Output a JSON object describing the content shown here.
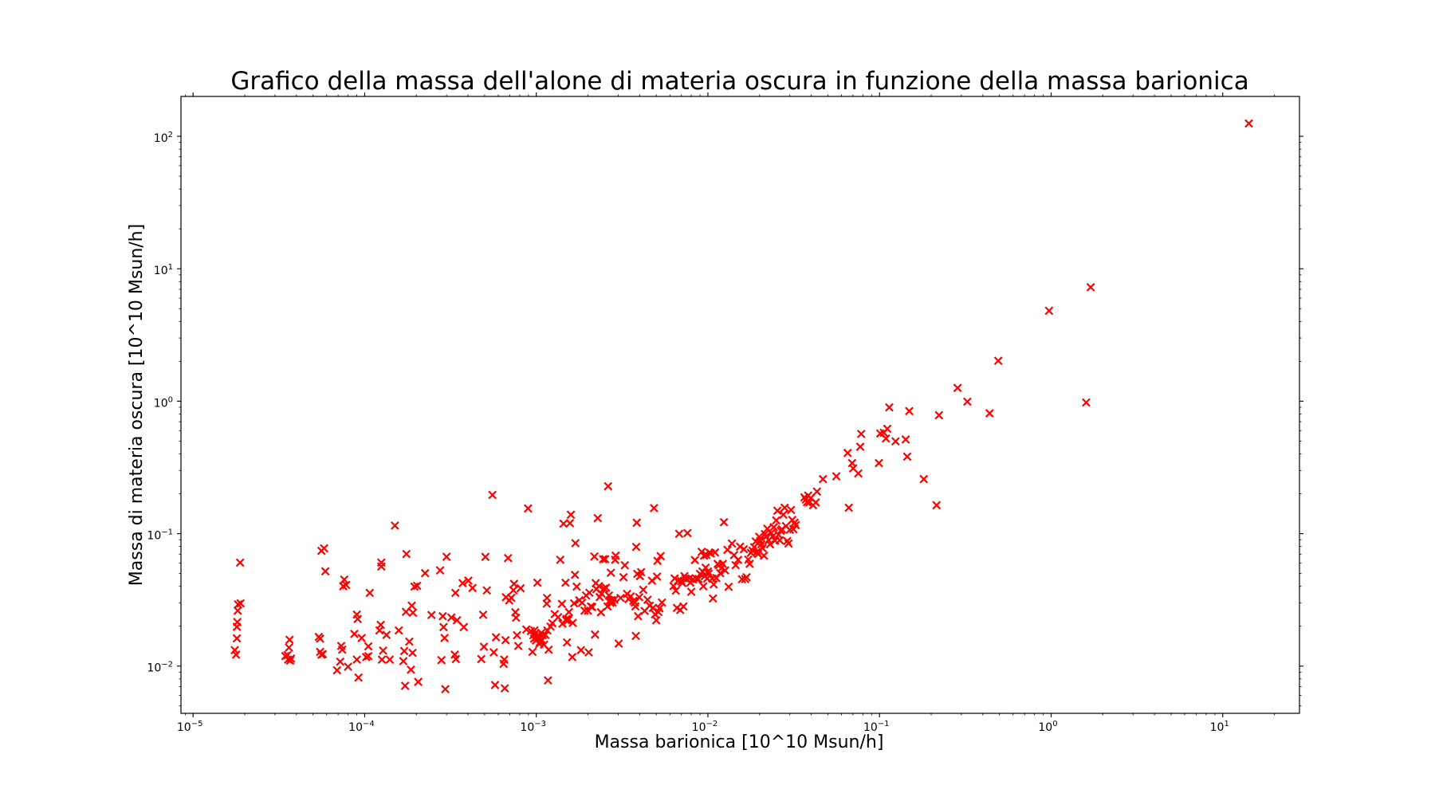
{
  "chart_data": {
    "type": "scatter",
    "title": "Grafico della massa dell'alone di materia oscura in funzione della massa barionica",
    "xlabel": "Massa barionica [10^10 Msun/h]",
    "ylabel": "Massa di materia oscura [10^10 Msun/h]",
    "xscale": "log",
    "yscale": "log",
    "xlim": [
      8.5e-06,
      28
    ],
    "ylim": [
      0.0044,
      200
    ],
    "xticks": [
      {
        "base": "10",
        "exp": "−5",
        "value": 1e-05
      },
      {
        "base": "10",
        "exp": "−4",
        "value": 0.0001
      },
      {
        "base": "10",
        "exp": "−3",
        "value": 0.001
      },
      {
        "base": "10",
        "exp": "−2",
        "value": 0.01
      },
      {
        "base": "10",
        "exp": "−1",
        "value": 0.1
      },
      {
        "base": "10",
        "exp": "0",
        "value": 1
      },
      {
        "base": "10",
        "exp": "1",
        "value": 10
      }
    ],
    "yticks": [
      {
        "base": "10",
        "exp": "−2",
        "value": 0.01
      },
      {
        "base": "10",
        "exp": "−1",
        "value": 0.1
      },
      {
        "base": "10",
        "exp": "0",
        "value": 1
      },
      {
        "base": "10",
        "exp": "1",
        "value": 10
      },
      {
        "base": "10",
        "exp": "2",
        "value": 100
      }
    ],
    "grid": false,
    "legend": "none",
    "marker": "x",
    "color": "#ff0000",
    "points": [
      [
        1.75e-05,
        0.0132
      ],
      [
        1.78e-05,
        0.0122
      ],
      [
        1.8e-05,
        0.0162
      ],
      [
        1.8e-05,
        0.0198
      ],
      [
        1.81e-05,
        0.0215
      ],
      [
        1.82e-05,
        0.0262
      ],
      [
        1.83e-05,
        0.0292
      ],
      [
        1.89e-05,
        0.0298
      ],
      [
        1.88e-05,
        0.0605
      ],
      [
        3.45e-05,
        0.0119
      ],
      [
        3.55e-05,
        0.0121
      ],
      [
        3.58e-05,
        0.0112
      ],
      [
        3.62e-05,
        0.0138
      ],
      [
        3.65e-05,
        0.0158
      ],
      [
        3.68e-05,
        0.011
      ],
      [
        3.72e-05,
        0.0114
      ],
      [
        5.4e-05,
        0.0166
      ],
      [
        5.5e-05,
        0.0161
      ],
      [
        5.5e-05,
        0.0128
      ],
      [
        5.6e-05,
        0.0122
      ],
      [
        5.7e-05,
        0.0123
      ],
      [
        5.6e-05,
        0.0742
      ],
      [
        5.8e-05,
        0.0775
      ],
      [
        5.9e-05,
        0.052
      ],
      [
        6.9e-05,
        0.0093
      ],
      [
        7.2e-05,
        0.0108
      ],
      [
        7.3e-05,
        0.0142
      ],
      [
        7.4e-05,
        0.0133
      ],
      [
        7.5e-05,
        0.0401
      ],
      [
        7.6e-05,
        0.045
      ],
      [
        7.8e-05,
        0.041
      ],
      [
        8e-05,
        0.0099
      ],
      [
        8.7e-05,
        0.0175
      ],
      [
        9e-05,
        0.0112
      ],
      [
        9e-05,
        0.0245
      ],
      [
        9.1e-05,
        0.0227
      ],
      [
        9.2e-05,
        0.0082
      ],
      [
        9.6e-05,
        0.0163
      ],
      [
        0.000102,
        0.0117
      ],
      [
        0.000105,
        0.0141
      ],
      [
        0.000105,
        0.0119
      ],
      [
        0.000107,
        0.0357
      ],
      [
        0.000122,
        0.0186
      ],
      [
        0.000124,
        0.0205
      ],
      [
        0.000125,
        0.0605
      ],
      [
        0.000125,
        0.0565
      ],
      [
        0.000126,
        0.0112
      ],
      [
        0.000128,
        0.0131
      ],
      [
        0.000134,
        0.0172
      ],
      [
        0.00014,
        0.0112
      ],
      [
        0.00015,
        0.115
      ],
      [
        0.000158,
        0.0186
      ],
      [
        0.000168,
        0.0109
      ],
      [
        0.00017,
        0.013
      ],
      [
        0.000172,
        0.0071
      ],
      [
        0.000174,
        0.0257
      ],
      [
        0.000175,
        0.0702
      ],
      [
        0.000182,
        0.0153
      ],
      [
        0.000186,
        0.0094
      ],
      [
        0.000188,
        0.0286
      ],
      [
        0.00019,
        0.0126
      ],
      [
        0.000191,
        0.0253
      ],
      [
        0.000195,
        0.0398
      ],
      [
        0.000202,
        0.0404
      ],
      [
        0.000205,
        0.0076
      ],
      [
        0.000225,
        0.0503
      ],
      [
        0.000245,
        0.0243
      ],
      [
        0.000275,
        0.0528
      ],
      [
        0.00028,
        0.0111
      ],
      [
        0.000285,
        0.0238
      ],
      [
        0.000288,
        0.0197
      ],
      [
        0.000292,
        0.0163
      ],
      [
        0.000295,
        0.0067
      ],
      [
        0.0003,
        0.0669
      ],
      [
        0.00032,
        0.0233
      ],
      [
        0.000335,
        0.0122
      ],
      [
        0.000338,
        0.0357
      ],
      [
        0.00034,
        0.0113
      ],
      [
        0.000345,
        0.0222
      ],
      [
        0.000372,
        0.0423
      ],
      [
        0.000378,
        0.0197
      ],
      [
        0.000402,
        0.0442
      ],
      [
        0.000425,
        0.0389
      ],
      [
        0.000478,
        0.0113
      ],
      [
        0.00049,
        0.0244
      ],
      [
        0.000495,
        0.014
      ],
      [
        0.000505,
        0.0668
      ],
      [
        0.000515,
        0.0373
      ],
      [
        0.000555,
        0.196
      ],
      [
        0.000565,
        0.0127
      ],
      [
        0.000575,
        0.0072
      ],
      [
        0.000582,
        0.0165
      ],
      [
        0.000645,
        0.0104
      ],
      [
        0.00065,
        0.0112
      ],
      [
        0.000655,
        0.0068
      ],
      [
        0.000662,
        0.0157
      ],
      [
        0.000665,
        0.0331
      ],
      [
        0.000685,
        0.0654
      ],
      [
        0.000695,
        0.0313
      ],
      [
        0.000715,
        0.0328
      ],
      [
        0.000735,
        0.0374
      ],
      [
        0.000742,
        0.0418
      ],
      [
        0.000755,
        0.0255
      ],
      [
        0.000762,
        0.0232
      ],
      [
        0.000772,
        0.0171
      ],
      [
        0.000785,
        0.0142
      ],
      [
        0.00081,
        0.0387
      ],
      [
        0.000875,
        0.0189
      ],
      [
        0.000895,
        0.155
      ],
      [
        0.00093,
        0.0184
      ],
      [
        0.00095,
        0.0128
      ],
      [
        0.00096,
        0.0171
      ],
      [
        0.00097,
        0.0161
      ],
      [
        0.000975,
        0.0186
      ],
      [
        0.000985,
        0.0176
      ],
      [
        0.000995,
        0.0156
      ],
      [
        0.001,
        0.0165
      ],
      [
        0.001015,
        0.0426
      ],
      [
        0.00103,
        0.0163
      ],
      [
        0.00104,
        0.0147
      ],
      [
        0.00105,
        0.0152
      ],
      [
        0.00107,
        0.0178
      ],
      [
        0.00108,
        0.0157
      ],
      [
        0.00109,
        0.0171
      ],
      [
        0.00111,
        0.0145
      ],
      [
        0.00113,
        0.0172
      ],
      [
        0.00115,
        0.0296
      ],
      [
        0.001155,
        0.0327
      ],
      [
        0.00116,
        0.0186
      ],
      [
        0.00117,
        0.0078
      ],
      [
        0.00118,
        0.0133
      ],
      [
        0.00121,
        0.0199
      ],
      [
        0.00124,
        0.0211
      ],
      [
        0.00128,
        0.0247
      ],
      [
        0.00134,
        0.0234
      ],
      [
        0.00138,
        0.0635
      ],
      [
        0.00141,
        0.0295
      ],
      [
        0.00142,
        0.0209
      ],
      [
        0.00144,
        0.119
      ],
      [
        0.00148,
        0.0426
      ],
      [
        0.00149,
        0.0222
      ],
      [
        0.0015,
        0.0227
      ],
      [
        0.00151,
        0.0151
      ],
      [
        0.00153,
        0.0222
      ],
      [
        0.00154,
        0.0227
      ],
      [
        0.00155,
        0.0256
      ],
      [
        0.00157,
        0.12
      ],
      [
        0.00159,
        0.139
      ],
      [
        0.00162,
        0.0117
      ],
      [
        0.00163,
        0.0212
      ],
      [
        0.00166,
        0.0298
      ],
      [
        0.00168,
        0.0489
      ],
      [
        0.00169,
        0.0848
      ],
      [
        0.00172,
        0.0398
      ],
      [
        0.00178,
        0.0314
      ],
      [
        0.00182,
        0.0132
      ],
      [
        0.00185,
        0.0301
      ],
      [
        0.00191,
        0.0262
      ],
      [
        0.00195,
        0.0341
      ],
      [
        0.002,
        0.0262
      ],
      [
        0.00202,
        0.0127
      ],
      [
        0.00204,
        0.0358
      ],
      [
        0.00208,
        0.0282
      ],
      [
        0.00212,
        0.0279
      ],
      [
        0.00218,
        0.0672
      ],
      [
        0.0022,
        0.0173
      ],
      [
        0.00222,
        0.0423
      ],
      [
        0.00224,
        0.0381
      ],
      [
        0.00228,
        0.131
      ],
      [
        0.00232,
        0.0402
      ],
      [
        0.00234,
        0.0332
      ],
      [
        0.00238,
        0.0255
      ],
      [
        0.0024,
        0.0352
      ],
      [
        0.00245,
        0.0641
      ],
      [
        0.00248,
        0.0385
      ],
      [
        0.00252,
        0.0642
      ],
      [
        0.00255,
        0.0391
      ],
      [
        0.0026,
        0.0282
      ],
      [
        0.00262,
        0.228
      ],
      [
        0.00265,
        0.0341
      ],
      [
        0.00268,
        0.0313
      ],
      [
        0.0027,
        0.0301
      ],
      [
        0.00272,
        0.0507
      ],
      [
        0.00275,
        0.0315
      ],
      [
        0.00278,
        0.0302
      ],
      [
        0.00285,
        0.0318
      ],
      [
        0.00288,
        0.0635
      ],
      [
        0.0029,
        0.0682
      ],
      [
        0.00302,
        0.0148
      ],
      [
        0.0031,
        0.0327
      ],
      [
        0.00322,
        0.0469
      ],
      [
        0.00328,
        0.0577
      ],
      [
        0.00338,
        0.0351
      ],
      [
        0.00345,
        0.0321
      ],
      [
        0.00355,
        0.0336
      ],
      [
        0.00368,
        0.0311
      ],
      [
        0.00375,
        0.0302
      ],
      [
        0.00378,
        0.0282
      ],
      [
        0.0038,
        0.0169
      ],
      [
        0.00382,
        0.0794
      ],
      [
        0.00385,
        0.121
      ],
      [
        0.00388,
        0.0497
      ],
      [
        0.00392,
        0.0238
      ],
      [
        0.00398,
        0.0331
      ],
      [
        0.00402,
        0.0478
      ],
      [
        0.00408,
        0.0512
      ],
      [
        0.0042,
        0.0377
      ],
      [
        0.00428,
        0.0261
      ],
      [
        0.00445,
        0.0317
      ],
      [
        0.00458,
        0.0286
      ],
      [
        0.00472,
        0.0442
      ],
      [
        0.00478,
        0.0275
      ],
      [
        0.00485,
        0.156
      ],
      [
        0.00492,
        0.0246
      ],
      [
        0.005,
        0.0222
      ],
      [
        0.00505,
        0.0474
      ],
      [
        0.00508,
        0.0623
      ],
      [
        0.00515,
        0.0256
      ],
      [
        0.00522,
        0.0273
      ],
      [
        0.0053,
        0.0677
      ],
      [
        0.0054,
        0.0302
      ],
      [
        0.0063,
        0.0402
      ],
      [
        0.0064,
        0.0459
      ],
      [
        0.0065,
        0.0371
      ],
      [
        0.0066,
        0.0275
      ],
      [
        0.0067,
        0.0442
      ],
      [
        0.0068,
        0.0998
      ],
      [
        0.0069,
        0.0265
      ],
      [
        0.007,
        0.0437
      ],
      [
        0.0071,
        0.0423
      ],
      [
        0.0072,
        0.0282
      ],
      [
        0.0073,
        0.0478
      ],
      [
        0.0074,
        0.0458
      ],
      [
        0.0076,
        0.101
      ],
      [
        0.0078,
        0.0461
      ],
      [
        0.0079,
        0.0427
      ],
      [
        0.008,
        0.0364
      ],
      [
        0.0082,
        0.0451
      ],
      [
        0.0084,
        0.0632
      ],
      [
        0.0086,
        0.0454
      ],
      [
        0.0088,
        0.0455
      ],
      [
        0.009,
        0.0496
      ],
      [
        0.0092,
        0.0729
      ],
      [
        0.0093,
        0.0518
      ],
      [
        0.0094,
        0.0401
      ],
      [
        0.0095,
        0.0682
      ],
      [
        0.0096,
        0.0478
      ],
      [
        0.0097,
        0.0554
      ],
      [
        0.0098,
        0.0691
      ],
      [
        0.0099,
        0.0458
      ],
      [
        0.01,
        0.0518
      ],
      [
        0.0101,
        0.0499
      ],
      [
        0.0102,
        0.0719
      ],
      [
        0.0104,
        0.0709
      ],
      [
        0.0106,
        0.0458
      ],
      [
        0.0107,
        0.0324
      ],
      [
        0.0108,
        0.0414
      ],
      [
        0.011,
        0.0721
      ],
      [
        0.0112,
        0.0462
      ],
      [
        0.0114,
        0.0591
      ],
      [
        0.0116,
        0.0578
      ],
      [
        0.0118,
        0.0503
      ],
      [
        0.012,
        0.0549
      ],
      [
        0.0122,
        0.0591
      ],
      [
        0.0124,
        0.122
      ],
      [
        0.0126,
        0.0528
      ],
      [
        0.013,
        0.0755
      ],
      [
        0.0132,
        0.0397
      ],
      [
        0.0138,
        0.0842
      ],
      [
        0.0142,
        0.0689
      ],
      [
        0.0145,
        0.0578
      ],
      [
        0.015,
        0.0634
      ],
      [
        0.0154,
        0.0798
      ],
      [
        0.0158,
        0.0453
      ],
      [
        0.0162,
        0.0763
      ],
      [
        0.0165,
        0.0454
      ],
      [
        0.0168,
        0.0469
      ],
      [
        0.0172,
        0.0637
      ],
      [
        0.0175,
        0.0592
      ],
      [
        0.0178,
        0.0717
      ],
      [
        0.0182,
        0.0743
      ],
      [
        0.0186,
        0.0791
      ],
      [
        0.019,
        0.0873
      ],
      [
        0.0193,
        0.0728
      ],
      [
        0.0196,
        0.0702
      ],
      [
        0.0199,
        0.0947
      ],
      [
        0.0202,
        0.0884
      ],
      [
        0.0205,
        0.0831
      ],
      [
        0.0208,
        0.0778
      ],
      [
        0.0212,
        0.0682
      ],
      [
        0.0215,
        0.0993
      ],
      [
        0.0218,
        0.0947
      ],
      [
        0.0222,
        0.109
      ],
      [
        0.0226,
        0.0892
      ],
      [
        0.023,
        0.0831
      ],
      [
        0.0234,
        0.101
      ],
      [
        0.0238,
        0.0953
      ],
      [
        0.0242,
        0.112
      ],
      [
        0.0246,
        0.0887
      ],
      [
        0.025,
        0.126
      ],
      [
        0.0254,
        0.149
      ],
      [
        0.0258,
        0.0982
      ],
      [
        0.0262,
        0.0892
      ],
      [
        0.0266,
        0.105
      ],
      [
        0.027,
        0.108
      ],
      [
        0.0275,
        0.139
      ],
      [
        0.028,
        0.157
      ],
      [
        0.0285,
        0.114
      ],
      [
        0.029,
        0.088
      ],
      [
        0.0295,
        0.0843
      ],
      [
        0.03,
        0.107
      ],
      [
        0.0305,
        0.151
      ],
      [
        0.031,
        0.127
      ],
      [
        0.0315,
        0.108
      ],
      [
        0.032,
        0.121
      ],
      [
        0.0325,
        0.116
      ],
      [
        0.0365,
        0.188
      ],
      [
        0.0372,
        0.181
      ],
      [
        0.0378,
        0.173
      ],
      [
        0.0384,
        0.194
      ],
      [
        0.039,
        0.172
      ],
      [
        0.0398,
        0.186
      ],
      [
        0.041,
        0.164
      ],
      [
        0.0425,
        0.172
      ],
      [
        0.0432,
        0.208
      ],
      [
        0.0468,
        0.258
      ],
      [
        0.056,
        0.271
      ],
      [
        0.0652,
        0.407
      ],
      [
        0.0662,
        0.157
      ],
      [
        0.0692,
        0.341
      ],
      [
        0.0702,
        0.311
      ],
      [
        0.0752,
        0.285
      ],
      [
        0.0772,
        0.453
      ],
      [
        0.0782,
        0.566
      ],
      [
        0.0992,
        0.341
      ],
      [
        0.101,
        0.571
      ],
      [
        0.106,
        0.578
      ],
      [
        0.109,
        0.523
      ],
      [
        0.111,
        0.619
      ],
      [
        0.114,
        0.898
      ],
      [
        0.124,
        0.498
      ],
      [
        0.142,
        0.514
      ],
      [
        0.145,
        0.382
      ],
      [
        0.149,
        0.842
      ],
      [
        0.181,
        0.258
      ],
      [
        0.215,
        0.164
      ],
      [
        0.222,
        0.784
      ],
      [
        0.285,
        1.26
      ],
      [
        0.325,
        0.992
      ],
      [
        0.438,
        0.811
      ],
      [
        0.492,
        2.02
      ],
      [
        0.972,
        4.82
      ],
      [
        1.6,
        0.978
      ],
      [
        1.7,
        7.25
      ],
      [
        14.2,
        125
      ]
    ]
  }
}
